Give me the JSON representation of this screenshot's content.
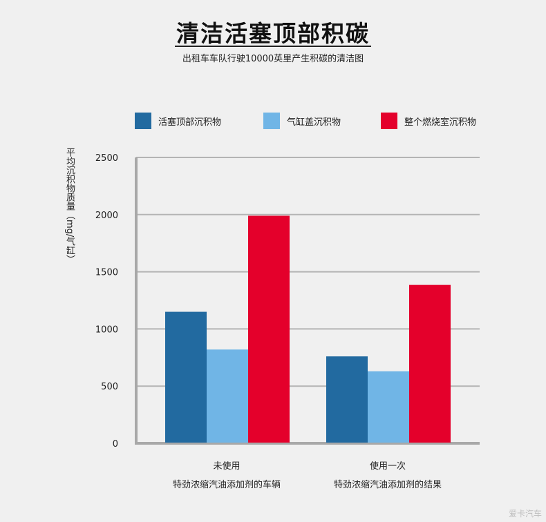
{
  "header": {
    "title": "清洁活塞顶部积碳",
    "subtitle": "出租车车队行驶10000英里产生积碳的清洁图"
  },
  "watermark": "爱卡汽车",
  "chart_data": {
    "type": "bar",
    "ylabel": "平均沉积物质量（mg/气缸）",
    "ylim": [
      0,
      2500
    ],
    "yticks": [
      0,
      500,
      1000,
      1500,
      2000,
      2500
    ],
    "grid": true,
    "legend_position": "top",
    "categories": [
      {
        "line1": "未使用",
        "line2": "特劲浓缩汽油添加剂的车辆"
      },
      {
        "line1": "使用一次",
        "line2": "特劲浓缩汽油添加剂的结果"
      }
    ],
    "series": [
      {
        "name": "活塞顶部沉积物",
        "color": "#226aa0",
        "values": [
          1150,
          760
        ]
      },
      {
        "name": "气缸盖沉积物",
        "color": "#70b5e6",
        "values": [
          820,
          630
        ]
      },
      {
        "name": "整个燃烧室沉积物",
        "color": "#e4002b",
        "values": [
          1990,
          1385
        ]
      }
    ]
  }
}
